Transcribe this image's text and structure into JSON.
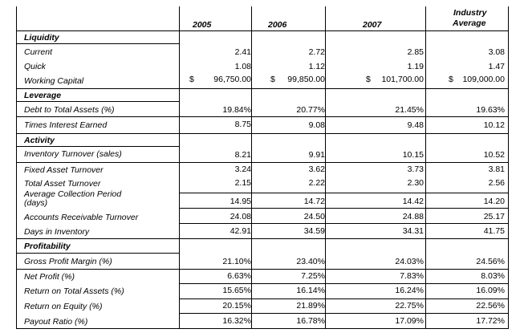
{
  "header": {
    "col_2005": "2005",
    "col_2006": "2006",
    "col_2007": "2007",
    "col_industry_line1": "Industry",
    "col_industry_line2": "Average"
  },
  "sections": {
    "liquidity": "Liquidity",
    "leverage": "Leverage",
    "activity": "Activity",
    "profitability": "Profitability"
  },
  "rows": {
    "current": {
      "label": "Current",
      "v2005": "2.41",
      "v2006": "2.72",
      "v2007": "2.85",
      "ind": "3.08"
    },
    "quick": {
      "label": "Quick",
      "v2005": "1.08",
      "v2006": "1.12",
      "v2007": "1.19",
      "ind": "1.47"
    },
    "working_capital": {
      "label": "Working Capital",
      "cur2005": "$",
      "v2005": "96,750.00",
      "cur2006": "$",
      "v2006": "99,850.00",
      "cur2007": "$",
      "v2007": "101,700.00",
      "curind": "$",
      "ind": "109,000.00"
    },
    "debt_total_assets": {
      "label": "Debt to Total Assets (%)",
      "v2005": "19.84%",
      "v2006": "20.77%",
      "v2007": "21.45%",
      "ind": "19.63%"
    },
    "times_interest": {
      "label": "Times Interest Earned",
      "v2005": "8.75",
      "v2006": "9.08",
      "v2007": "9.48",
      "ind": "10.12"
    },
    "inventory_turnover": {
      "label": "Inventory Turnover (sales)",
      "v2005": "8.21",
      "v2006": "9.91",
      "v2007": "10.15",
      "ind": "10.52"
    },
    "fixed_asset_turnover": {
      "label": "Fixed Asset Turnover",
      "v2005": "3.24",
      "v2006": "3.62",
      "v2007": "3.73",
      "ind": "3.81"
    },
    "total_asset_turnover": {
      "label": "Total Asset Turnover",
      "v2005": "2.15",
      "v2006": "2.22",
      "v2007": "2.30",
      "ind": "2.56"
    },
    "avg_collection": {
      "label_line1": "Average Collection Period",
      "label_line2": "(days)",
      "v2005": "14.95",
      "v2006": "14.72",
      "v2007": "14.42",
      "ind": "14.20"
    },
    "ar_turnover": {
      "label": "Accounts Receivable Turnover",
      "v2005": "24.08",
      "v2006": "24.50",
      "v2007": "24.88",
      "ind": "25.17"
    },
    "days_inventory": {
      "label": "Days in Inventory",
      "v2005": "42.91",
      "v2006": "34.59",
      "v2007": "34.31",
      "ind": "41.75"
    },
    "gross_profit": {
      "label": "Gross Profit Margin (%)",
      "v2005": "21.10%",
      "v2006": "23.40%",
      "v2007": "24.03%",
      "ind": "24.56%"
    },
    "net_profit": {
      "label": "Net Profit (%)",
      "v2005": "6.63%",
      "v2006": "7.25%",
      "v2007": "7.83%",
      "ind": "8.03%"
    },
    "roa": {
      "label": "Return on Total Assets (%)",
      "v2005": "15.65%",
      "v2006": "16.14%",
      "v2007": "16.24%",
      "ind": "16.09%"
    },
    "roe": {
      "label": "Return on Equity (%)",
      "v2005": "20.15%",
      "v2006": "21.89%",
      "v2007": "22.75%",
      "ind": "22.56%"
    },
    "payout": {
      "label": "Payout Ratio (%)",
      "v2005": "16.32%",
      "v2006": "16.78%",
      "v2007": "17.09%",
      "ind": "17.72%"
    }
  }
}
